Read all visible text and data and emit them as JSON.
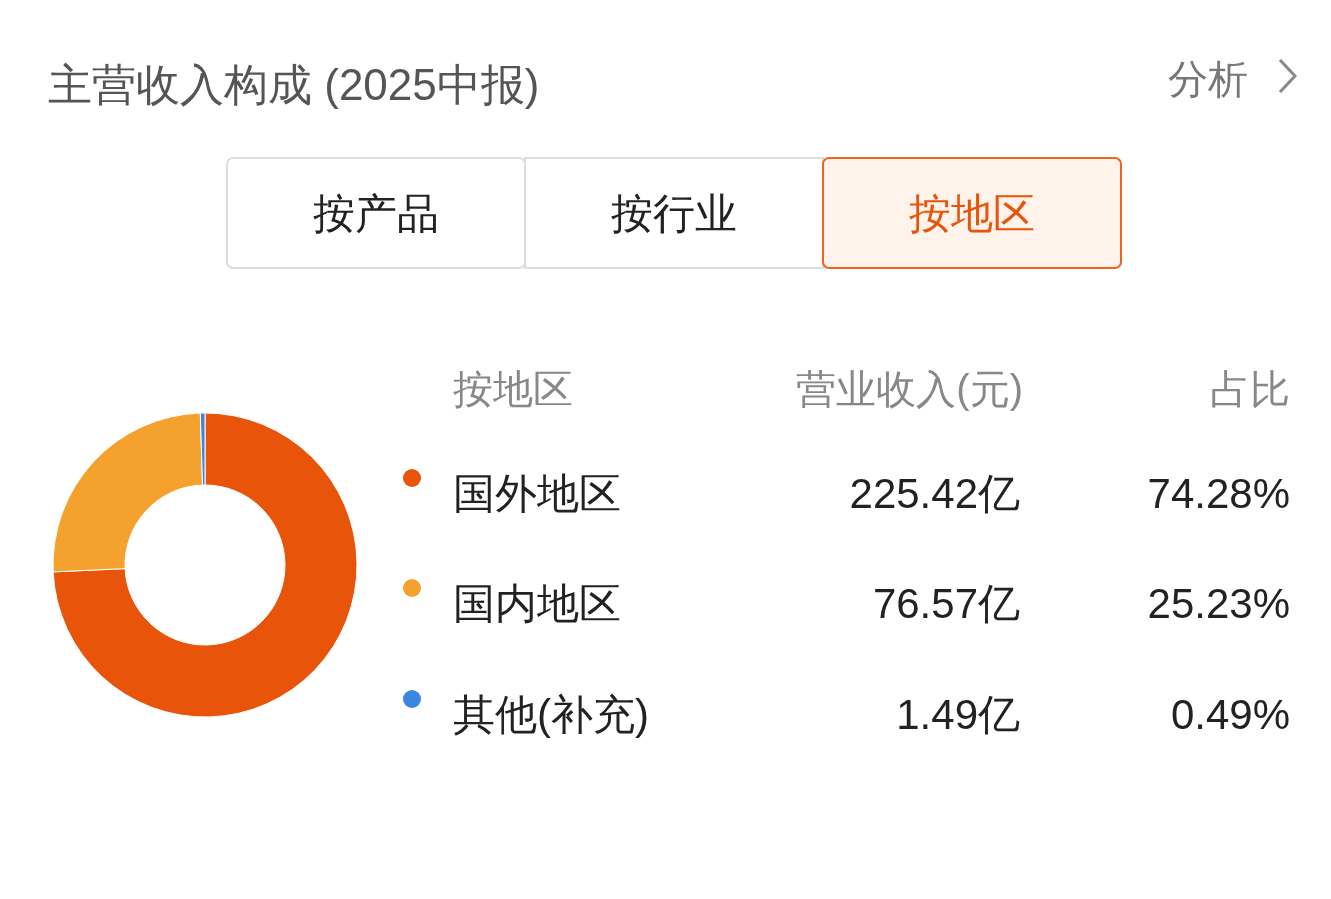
{
  "chart_data": {
    "type": "donut",
    "title": "主营收入构成 (2025中报)",
    "legend_title": "按地区",
    "categories": [
      "国外地区",
      "国内地区",
      "其他(补充)"
    ],
    "values": [
      225.42,
      76.57,
      1.49
    ],
    "value_labels": [
      "225.42亿",
      "76.57亿",
      "1.49亿"
    ],
    "colors": [
      "#e8540a",
      "#f5a12e",
      "#3b86e0"
    ],
    "legend": "right",
    "annotations": [
      "按产品",
      "按行业",
      "按地区",
      "分析",
      "营业收入(元)",
      "占比",
      "74.28%",
      "25.23%",
      "0.49%"
    ]
  }
}
